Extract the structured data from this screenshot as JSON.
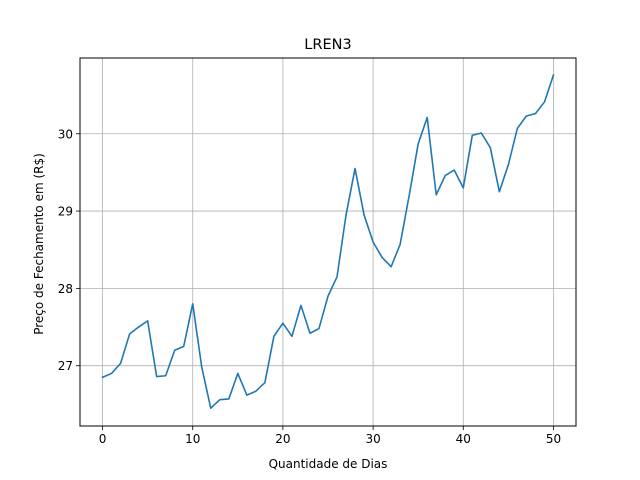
{
  "chart_data": {
    "type": "line",
    "title": "LREN3",
    "xlabel": "Quantidade de Dias",
    "ylabel": "Preço de Fechamento em (R$)",
    "xlim": [
      -2.5,
      52.5
    ],
    "ylim": [
      26.22,
      30.98
    ],
    "xticks": [
      0,
      10,
      20,
      30,
      40,
      50
    ],
    "yticks": [
      27,
      28,
      29,
      30
    ],
    "grid": true,
    "line_color": "#1f77b4",
    "series": [
      {
        "x": [
          0,
          1,
          2,
          3,
          4,
          5,
          6,
          7,
          8,
          9,
          10,
          11,
          12,
          13,
          14,
          15,
          16,
          17,
          18,
          19,
          20,
          21,
          22,
          23,
          24,
          25,
          26,
          27,
          28,
          29,
          30,
          31,
          32,
          33,
          34,
          35,
          36,
          37,
          38,
          39,
          40,
          41,
          42,
          43,
          44,
          45,
          46,
          47,
          48,
          49,
          50
        ],
        "values": [
          26.85,
          26.9,
          27.03,
          27.41,
          27.5,
          27.58,
          26.86,
          26.87,
          27.2,
          27.25,
          27.8,
          26.98,
          26.45,
          26.56,
          26.57,
          26.9,
          26.62,
          26.67,
          26.78,
          27.38,
          27.55,
          27.38,
          27.78,
          27.42,
          27.48,
          27.9,
          28.15,
          28.95,
          29.55,
          28.95,
          28.6,
          28.4,
          28.28,
          28.57,
          29.2,
          29.87,
          30.21,
          29.21,
          29.46,
          29.53,
          29.3,
          29.98,
          30.01,
          29.82,
          29.25,
          29.6,
          30.07,
          30.23,
          30.26,
          30.41,
          30.76
        ]
      }
    ]
  }
}
